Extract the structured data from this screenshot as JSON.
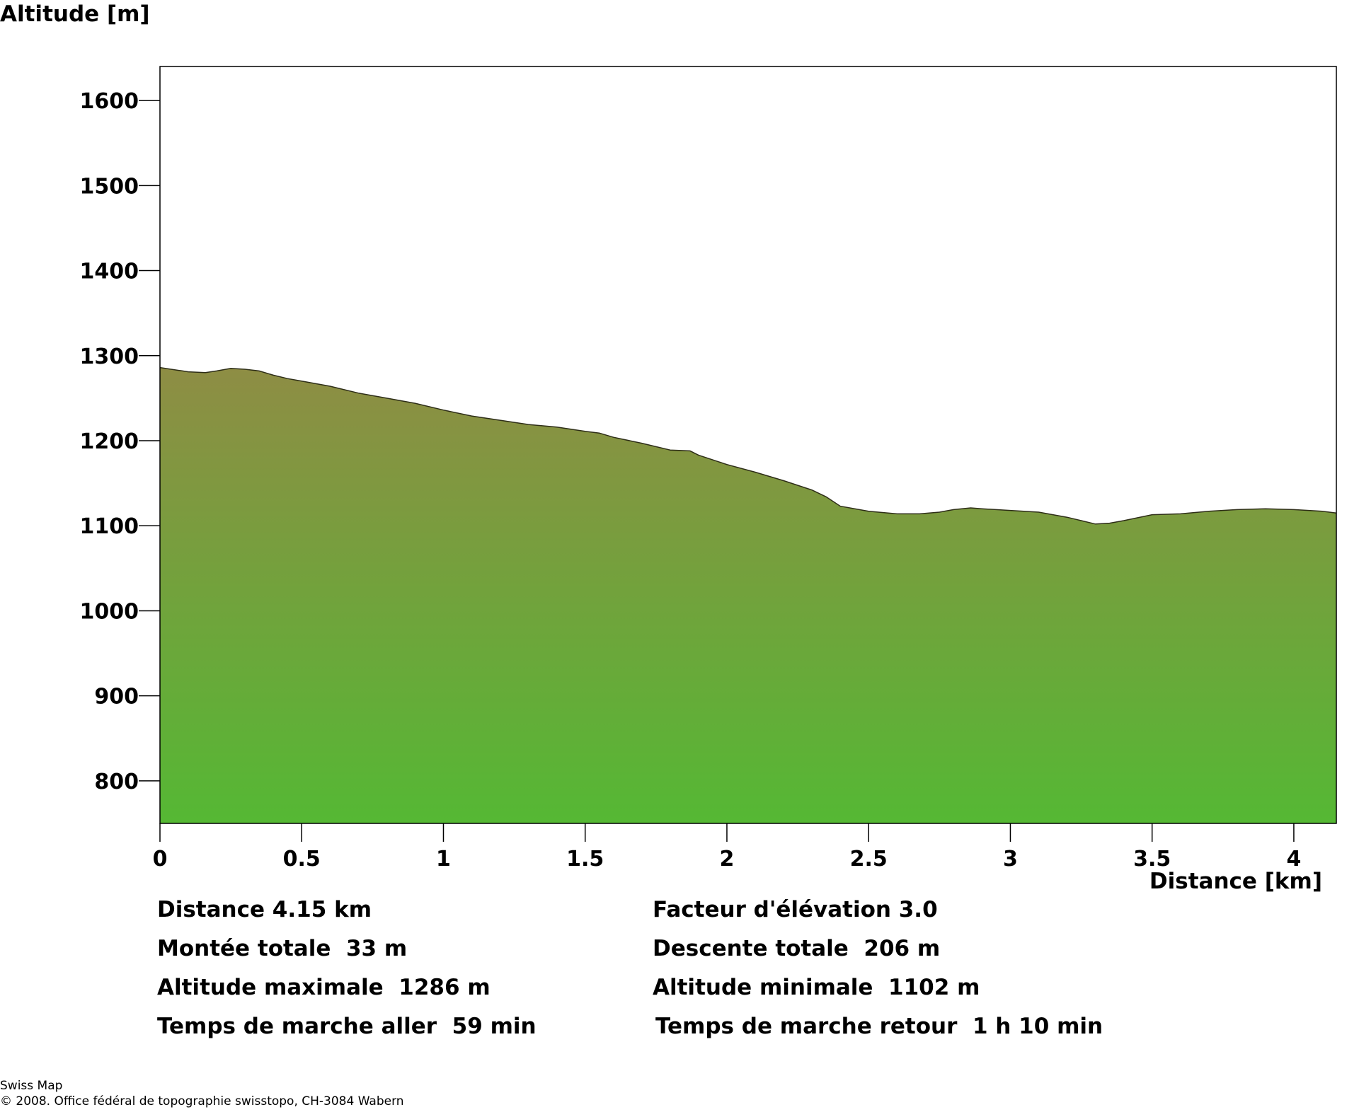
{
  "chart_data": {
    "type": "area",
    "ylabel": "Altitude [m]",
    "xlabel": "Distance [km]",
    "xlim": [
      0,
      4.15
    ],
    "ylim": [
      750,
      1640
    ],
    "xticks": [
      0,
      0.5,
      1,
      1.5,
      2,
      2.5,
      3,
      3.5,
      4
    ],
    "xtick_labels": [
      "0",
      "0.5",
      "1",
      "1.5",
      "2",
      "2.5",
      "3",
      "3.5",
      "4"
    ],
    "yticks": [
      800,
      900,
      1000,
      1100,
      1200,
      1300,
      1400,
      1500,
      1600
    ],
    "ytick_labels": [
      "800",
      "900",
      "1000",
      "1100",
      "1200",
      "1300",
      "1400",
      "1500",
      "1600"
    ],
    "grid": false,
    "colors": {
      "fill_top": "#8e8d44",
      "fill_bottom": "#55b834",
      "line": "#2e2e18"
    },
    "series": [
      {
        "x": [
          0,
          0.06,
          0.1,
          0.16,
          0.2,
          0.25,
          0.3,
          0.35,
          0.4,
          0.45,
          0.5,
          0.6,
          0.7,
          0.8,
          0.9,
          1.0,
          1.1,
          1.2,
          1.3,
          1.4,
          1.5,
          1.55,
          1.6,
          1.7,
          1.8,
          1.87,
          1.9,
          2.0,
          2.1,
          2.2,
          2.3,
          2.35,
          2.4,
          2.5,
          2.6,
          2.68,
          2.75,
          2.8,
          2.86,
          2.9,
          3.0,
          3.1,
          3.2,
          3.25,
          3.3,
          3.35,
          3.4,
          3.5,
          3.6,
          3.7,
          3.8,
          3.9,
          4.0,
          4.1,
          4.15
        ],
        "y": [
          1286,
          1283,
          1281,
          1280,
          1282,
          1285,
          1284,
          1282,
          1277,
          1273,
          1270,
          1264,
          1256,
          1250,
          1244,
          1236,
          1229,
          1224,
          1219,
          1216,
          1211,
          1209,
          1204,
          1197,
          1189,
          1188,
          1183,
          1172,
          1163,
          1153,
          1142,
          1134,
          1123,
          1117,
          1114,
          1114,
          1116,
          1119,
          1121,
          1120,
          1118,
          1116,
          1110,
          1106,
          1102,
          1103,
          1106,
          1113,
          1114,
          1117,
          1119,
          1120,
          1119,
          1117,
          1115
        ]
      }
    ]
  },
  "stats": {
    "distance": "Distance 4.15 km",
    "elevation_factor": "Facteur d'élévation 3.0",
    "total_ascent": "Montée totale  33 m",
    "total_descent": "Descente totale  206 m",
    "max_altitude": "Altitude maximale  1286 m",
    "min_altitude": "Altitude minimale  1102 m",
    "walk_time_out": "Temps de marche aller  59 min",
    "walk_time_back": "Temps de marche retour  1 h 10 min"
  },
  "credits": {
    "source": "Swiss Map",
    "copyright": "© 2008. Office fédéral de topographie swisstopo, CH-3084 Wabern"
  }
}
